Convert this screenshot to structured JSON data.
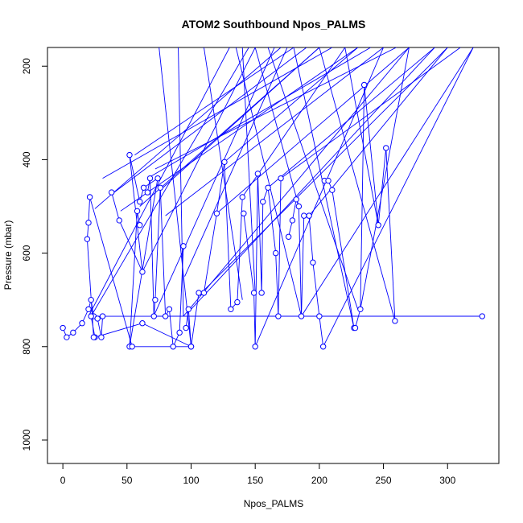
{
  "chart_data": {
    "type": "line",
    "title": "ATOM2 Southbound Npos_PALMS",
    "xlabel": "Npos_PALMS",
    "ylabel": "Pressure (mbar)",
    "xlim": [
      -12,
      340
    ],
    "ylim": [
      1050,
      160
    ],
    "y_reversed": true,
    "xticks": [
      0,
      50,
      100,
      150,
      200,
      250,
      300
    ],
    "yticks": [
      200,
      400,
      600,
      800,
      1000
    ],
    "grid": false,
    "marker": "open-circle",
    "series_color": "#0000ff",
    "series": [
      {
        "x": [
          0,
          3,
          8,
          15,
          20,
          22,
          24,
          27,
          30,
          31
        ],
        "y": [
          760,
          780,
          770,
          750,
          720,
          700,
          735,
          740,
          780,
          735
        ]
      },
      {
        "x": [
          38,
          44,
          62,
          52,
          60,
          63,
          74,
          52,
          58,
          60
        ],
        "y": [
          470,
          530,
          640,
          390,
          490,
          460,
          440,
          800,
          510,
          540
        ]
      },
      {
        "x": [
          66,
          68,
          71,
          72,
          76,
          80,
          83,
          86,
          91,
          94
        ],
        "y": [
          470,
          440,
          735,
          700,
          460,
          735,
          720,
          800,
          770,
          585
        ]
      },
      {
        "x": [
          96,
          98,
          100,
          106,
          110,
          120,
          126,
          131,
          136,
          140
        ],
        "y": [
          760,
          720,
          800,
          685,
          685,
          515,
          405,
          720,
          705,
          480
        ]
      },
      {
        "x": [
          141,
          149,
          150,
          152,
          155,
          156,
          160,
          166,
          168,
          170
        ],
        "y": [
          515,
          685,
          800,
          430,
          685,
          490,
          460,
          600,
          735,
          440
        ]
      },
      {
        "x": [
          176,
          179,
          182,
          184,
          186,
          188,
          192,
          195,
          200,
          203
        ],
        "y": [
          565,
          530,
          485,
          500,
          735,
          520,
          520,
          620,
          735,
          800
        ]
      },
      {
        "x": [
          204,
          207,
          210,
          227,
          228,
          232,
          235,
          246,
          252,
          259
        ],
        "y": [
          445,
          445,
          465,
          760,
          760,
          720,
          240,
          540,
          375,
          745
        ]
      },
      {
        "x": [
          327,
          22,
          25,
          62,
          100,
          54,
          21,
          20,
          19,
          24
        ],
        "y": [
          735,
          735,
          780,
          750,
          800,
          800,
          480,
          535,
          570,
          780
        ]
      }
    ],
    "lines_to_top": [
      [
        20,
        735,
        130,
        160
      ],
      [
        22,
        735,
        145,
        160
      ],
      [
        25,
        505,
        170,
        160
      ],
      [
        31,
        440,
        210,
        160
      ],
      [
        40,
        470,
        190,
        160
      ],
      [
        45,
        510,
        230,
        160
      ],
      [
        56,
        390,
        180,
        160
      ],
      [
        60,
        500,
        200,
        160
      ],
      [
        62,
        640,
        150,
        160
      ],
      [
        66,
        440,
        240,
        160
      ],
      [
        72,
        420,
        260,
        160
      ],
      [
        78,
        460,
        200,
        160
      ],
      [
        80,
        520,
        250,
        160
      ],
      [
        94,
        735,
        270,
        160
      ],
      [
        100,
        720,
        290,
        160
      ],
      [
        108,
        685,
        300,
        160
      ],
      [
        120,
        515,
        270,
        160
      ],
      [
        126,
        405,
        230,
        160
      ],
      [
        140,
        480,
        220,
        160
      ],
      [
        150,
        800,
        250,
        160
      ],
      [
        160,
        460,
        290,
        160
      ],
      [
        170,
        440,
        310,
        160
      ],
      [
        186,
        735,
        320,
        160
      ],
      [
        192,
        520,
        300,
        160
      ],
      [
        203,
        800,
        320,
        160
      ],
      [
        232,
        720,
        270,
        160
      ],
      [
        70,
        740,
        165,
        160
      ],
      [
        95,
        650,
        175,
        160
      ]
    ],
    "lines_from_top": [
      [
        135,
        160,
        186,
        735
      ],
      [
        140,
        160,
        150,
        685
      ],
      [
        160,
        160,
        230,
        720
      ],
      [
        180,
        160,
        227,
        760
      ],
      [
        200,
        160,
        259,
        745
      ],
      [
        220,
        160,
        246,
        540
      ],
      [
        90,
        160,
        94,
        735
      ],
      [
        75,
        160,
        100,
        800
      ],
      [
        110,
        160,
        140,
        700
      ],
      [
        150,
        160,
        184,
        500
      ]
    ],
    "horizontal_lines": [
      [
        68,
        735,
        327,
        735
      ]
    ]
  }
}
